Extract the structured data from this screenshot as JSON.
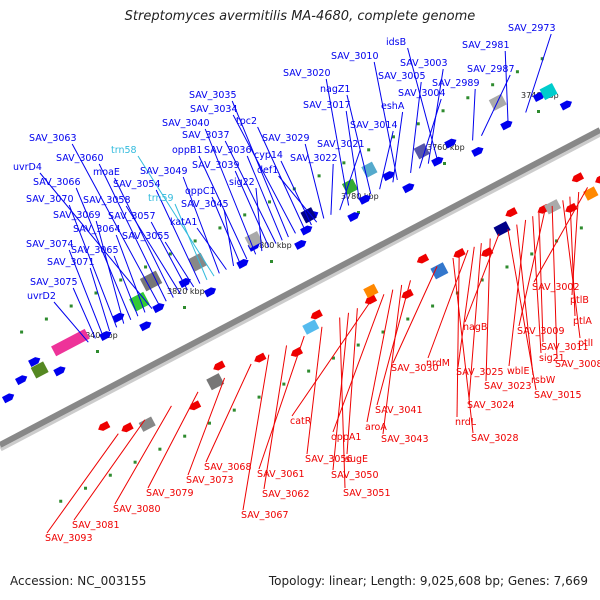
{
  "title": "Streptomyces avermitilis MA-4680, complete genome",
  "footer": {
    "accession": "Accession: NC_003155",
    "topology": "Topology: linear; Length: 9,025,608 bp; Genes: 7,669"
  },
  "colors": {
    "forward": "#0000ee",
    "reverse": "#ee0000",
    "rna": "#33bbdd",
    "axis": "#888888",
    "tick_marker": "#2e8b2e"
  },
  "ticks": [
    "3740 kbp",
    "3760 kbp",
    "3780 kbp",
    "3800 kbp",
    "3820 kbp",
    "3840 kbp"
  ],
  "forward_labels": [
    "SAV_2973",
    "SAV_2981",
    "SAV_2987",
    "SAV_2989",
    "idsB",
    "SAV_3003",
    "SAV_3004",
    "SAV_3005",
    "SAV_3010",
    "eshA",
    "SAV_3014",
    "nagZ1",
    "SAV_3017",
    "SAV_3020",
    "SAV_3021",
    "SAV_3022",
    "SAV_3029",
    "def1",
    "cyp14",
    "tpc2",
    "SAV_3034",
    "SAV_3035",
    "SAV_3036",
    "SAV_3037",
    "SAV_3039",
    "sig22",
    "SAV_3040",
    "oppB1",
    "oppC1",
    "SAV_3045",
    "katA1",
    "SAV_3049",
    "trn58",
    "trn59",
    "SAV_3054",
    "SAV_3055",
    "SAV_3057",
    "SAV_3058",
    "moaE",
    "SAV_3060",
    "SAV_3063",
    "uvrD4",
    "SAV_3064",
    "SAV_3065",
    "SAV_3066",
    "SAV_3069",
    "SAV_3070",
    "SAV_3071",
    "SAV_3074",
    "SAV_3075",
    "uvrD2"
  ],
  "reverse_labels": [
    "SAV_3002",
    "ptlB",
    "ptlA",
    "ptlI",
    "SAV_3008",
    "SAV_3009",
    "SAV_3011",
    "sig21",
    "wblE",
    "rsbW",
    "SAV_3015",
    "nagB",
    "SAV_3023",
    "SAV_3024",
    "SAV_3025",
    "nrdM",
    "nrdL",
    "SAV_3028",
    "SAV_3030",
    "SAV_3041",
    "SAV_3043",
    "aroA",
    "oppA1",
    "catR",
    "sugE",
    "SAV_3050",
    "SAV_3051",
    "SAV_3056",
    "SAV_3061",
    "SAV_3062",
    "SAV_3067",
    "SAV_3068",
    "SAV_3073",
    "SAV_3079",
    "SAV_3080",
    "SAV_3081",
    "SAV_3093"
  ]
}
